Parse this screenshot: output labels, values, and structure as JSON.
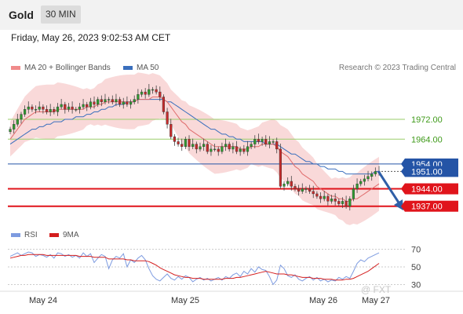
{
  "header": {
    "instrument": "Gold",
    "timeframe": "30 MIN",
    "datetime": "Friday, May 26, 2023 9:02:53 AM CET"
  },
  "legend": {
    "ma20_label": "MA 20 + Bollinger Bands",
    "ma50_label": "MA 50",
    "attribution": "Research © 2023 Trading Central",
    "rsi_label": "RSI",
    "rsi_ma_label": "9MA"
  },
  "watermark": "@ FXT",
  "colors": {
    "bull": "#2f9a2f",
    "bear": "#c62a2a",
    "ma20": "#e06d6d",
    "ma50": "#3a6fbd",
    "band": "#f9d9d9",
    "support": "#e0141b",
    "resistance": "#9acd6a",
    "current": "#2454a6",
    "rsi": "#7d9be0",
    "rsi_ma": "#d41e1e",
    "arrow": "#2f5fa7"
  },
  "chart_data": [
    {
      "type": "candlestick",
      "title": "Gold",
      "x_ticks": [
        "May 24",
        "May 25",
        "May 26",
        "May 27"
      ],
      "price_levels": [
        {
          "label": "1972.00",
          "value": 1972,
          "kind": "resistance"
        },
        {
          "label": "1964.00",
          "value": 1964,
          "kind": "resistance"
        },
        {
          "label": "1954.00",
          "value": 1954,
          "kind": "current"
        },
        {
          "label": "1951.00",
          "value": 1951,
          "kind": "current-partial"
        },
        {
          "label": "1944.00",
          "value": 1944,
          "kind": "support"
        },
        {
          "label": "1937.00",
          "value": 1937,
          "kind": "support"
        }
      ],
      "y_range": [
        1929,
        1990
      ],
      "close_series": [
        1968,
        1970,
        1972,
        1974,
        1976,
        1977,
        1976,
        1976,
        1977,
        1976,
        1975,
        1976,
        1975,
        1977,
        1978,
        1976,
        1977,
        1976,
        1976,
        1977,
        1978,
        1977,
        1979,
        1978,
        1980,
        1979,
        1980,
        1980,
        1979,
        1980,
        1978,
        1979,
        1978,
        1979,
        1980,
        1982,
        1983,
        1982,
        1984,
        1984,
        1983,
        1981,
        1975,
        1970,
        1965,
        1963,
        1962,
        1961,
        1964,
        1961,
        1962,
        1960,
        1961,
        1962,
        1959,
        1960,
        1960,
        1959,
        1961,
        1962,
        1960,
        1961,
        1959,
        1960,
        1959,
        1961,
        1962,
        1964,
        1963,
        1964,
        1962,
        1963,
        1963,
        1960,
        1945,
        1946,
        1947,
        1945,
        1944,
        1943,
        1944,
        1944,
        1943,
        1942,
        1941,
        1940,
        1941,
        1939,
        1940,
        1939,
        1938,
        1939,
        1937,
        1940,
        1944,
        1946,
        1947,
        1948,
        1949,
        1950,
        1951,
        1951
      ],
      "ma20_series": [
        1964,
        1966,
        1968,
        1970,
        1972,
        1973,
        1974,
        1975,
        1975,
        1975,
        1975,
        1975,
        1975,
        1976,
        1976,
        1976,
        1976,
        1976,
        1976,
        1976,
        1976,
        1977,
        1977,
        1977,
        1978,
        1978,
        1979,
        1979,
        1979,
        1979,
        1979,
        1979,
        1979,
        1979,
        1979,
        1980,
        1980,
        1980,
        1980,
        1981,
        1981,
        1981,
        1980,
        1979,
        1977,
        1975,
        1973,
        1971,
        1970,
        1968,
        1967,
        1966,
        1965,
        1964,
        1963,
        1962,
        1961,
        1961,
        1961,
        1961,
        1961,
        1961,
        1961,
        1960,
        1960,
        1960,
        1961,
        1961,
        1961,
        1962,
        1962,
        1962,
        1962,
        1961,
        1959,
        1958,
        1957,
        1955,
        1953,
        1952,
        1950,
        1949,
        1948,
        1947,
        1945,
        1944,
        1943,
        1942,
        1941,
        1941,
        1940,
        1940,
        1939,
        1939,
        1940,
        1940,
        1941,
        1942,
        1943,
        1944,
        1945,
        1946
      ],
      "ma50_series": [
        1962,
        1963,
        1964,
        1965,
        1966,
        1967,
        1968,
        1968,
        1969,
        1969,
        1970,
        1970,
        1971,
        1971,
        1971,
        1972,
        1972,
        1972,
        1973,
        1973,
        1973,
        1974,
        1974,
        1975,
        1975,
        1976,
        1976,
        1977,
        1977,
        1978,
        1978,
        1978,
        1979,
        1979,
        1979,
        1980,
        1980,
        1980,
        1980,
        1980,
        1980,
        1980,
        1980,
        1979,
        1979,
        1978,
        1977,
        1976,
        1975,
        1974,
        1973,
        1972,
        1971,
        1970,
        1969,
        1968,
        1968,
        1967,
        1966,
        1966,
        1965,
        1965,
        1964,
        1964,
        1963,
        1963,
        1963,
        1963,
        1963,
        1963,
        1962,
        1962,
        1962,
        1962,
        1961,
        1960,
        1959,
        1958,
        1958,
        1957,
        1956,
        1955,
        1955,
        1954,
        1954,
        1953,
        1953,
        1952,
        1952,
        1952,
        1951,
        1951,
        1950,
        1950,
        1950,
        1950,
        1950,
        1950,
        1950,
        1950,
        1951,
        1951
      ],
      "rsi_axis": {
        "range": [
          25,
          75
        ],
        "ticks": [
          "70",
          "50",
          "30"
        ]
      },
      "rsi_series": [
        62,
        64,
        66,
        63,
        65,
        67,
        66,
        62,
        64,
        63,
        61,
        64,
        60,
        66,
        65,
        62,
        64,
        61,
        63,
        60,
        66,
        62,
        65,
        55,
        60,
        64,
        62,
        48,
        58,
        62,
        60,
        65,
        50,
        58,
        55,
        60,
        63,
        58,
        48,
        40,
        36,
        34,
        38,
        42,
        37,
        35,
        39,
        36,
        40,
        38,
        33,
        36,
        38,
        35,
        37,
        34,
        36,
        38,
        35,
        39,
        37,
        41,
        43,
        39,
        45,
        42,
        48,
        44,
        50,
        47,
        46,
        39,
        30,
        35,
        52,
        48,
        40,
        38,
        41,
        36,
        34,
        37,
        39,
        35,
        38,
        34,
        36,
        33,
        35,
        34,
        38,
        36,
        39,
        37,
        45,
        54,
        58,
        56,
        60,
        62,
        64,
        66
      ],
      "rsi_ma_series": [
        60,
        61,
        62,
        63,
        63,
        64,
        64,
        64,
        64,
        64,
        63,
        63,
        63,
        63,
        63,
        63,
        63,
        63,
        63,
        62,
        62,
        62,
        62,
        61,
        61,
        61,
        61,
        59,
        59,
        59,
        59,
        59,
        58,
        58,
        57,
        57,
        57,
        57,
        56,
        54,
        52,
        49,
        47,
        45,
        43,
        41,
        40,
        39,
        38,
        38,
        37,
        37,
        37,
        36,
        36,
        36,
        36,
        36,
        36,
        37,
        37,
        37,
        38,
        38,
        39,
        40,
        41,
        42,
        43,
        44,
        45,
        44,
        43,
        42,
        42,
        42,
        41,
        41,
        40,
        39,
        38,
        38,
        38,
        37,
        37,
        37,
        36,
        36,
        36,
        35,
        35,
        35,
        36,
        36,
        37,
        39,
        41,
        43,
        45,
        48,
        51,
        54
      ]
    }
  ]
}
